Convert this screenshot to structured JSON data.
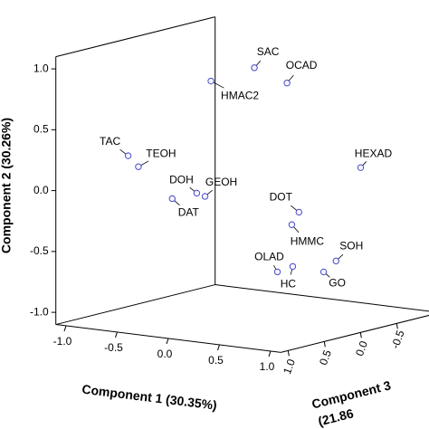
{
  "chart_data": {
    "type": "scatter3d",
    "xlabel": "Component 1 (30.35%)",
    "ylabel": "Component 2 (30.26%)",
    "zlabel_lines": [
      "Component 3",
      "(21.86"
    ],
    "point_color": "#4a4ac8",
    "xlim": [
      -1.1,
      1.1
    ],
    "ylim": [
      -1.1,
      1.1
    ],
    "zlim": [
      -1.1,
      1.1
    ],
    "xticks": [
      {
        "value": -1,
        "label": "-1.0"
      },
      -0.5,
      {
        "value": 0,
        "label": "0.0"
      },
      0.5,
      {
        "value": 1,
        "label": "1.0"
      }
    ],
    "yticks": [
      {
        "value": -1,
        "label": "-1.0"
      },
      -0.5,
      {
        "value": 0,
        "label": "0.0"
      },
      0.5,
      {
        "value": 1,
        "label": "1.0"
      }
    ],
    "zticks": [
      {
        "value": -1,
        "label": "-1.0"
      },
      -0.5,
      {
        "value": 0,
        "label": "0.0"
      },
      0.5,
      {
        "value": 1,
        "label": "1.0"
      }
    ],
    "labels": [
      "SAC",
      "OCAD",
      "HMAC2",
      "TAC",
      "TEOH",
      "DOH",
      "GEOH",
      "DAT",
      "HEXAD",
      "DOT",
      "HMMC",
      "OLAD",
      "HC",
      "SOH",
      "GO"
    ],
    "x": [
      -0.15,
      0.24,
      -0.15,
      -1.03,
      -0.93,
      -0.43,
      -0.42,
      -0.67,
      0.96,
      0.64,
      0.57,
      0.5,
      0.65,
      0.79,
      0.74
    ],
    "y": [
      0.9,
      0.83,
      0.88,
      0.16,
      0.08,
      -0.1,
      -0.14,
      -0.17,
      0.21,
      -0.13,
      -0.24,
      -0.62,
      -0.56,
      -0.56,
      -0.64
    ],
    "z": [
      -0.3,
      -0.2,
      0.3,
      0.2,
      0.2,
      0.1,
      0.0,
      0.1,
      -0.2,
      0.2,
      0.2,
      0.3,
      0.3,
      -0.1,
      0.0
    ]
  }
}
